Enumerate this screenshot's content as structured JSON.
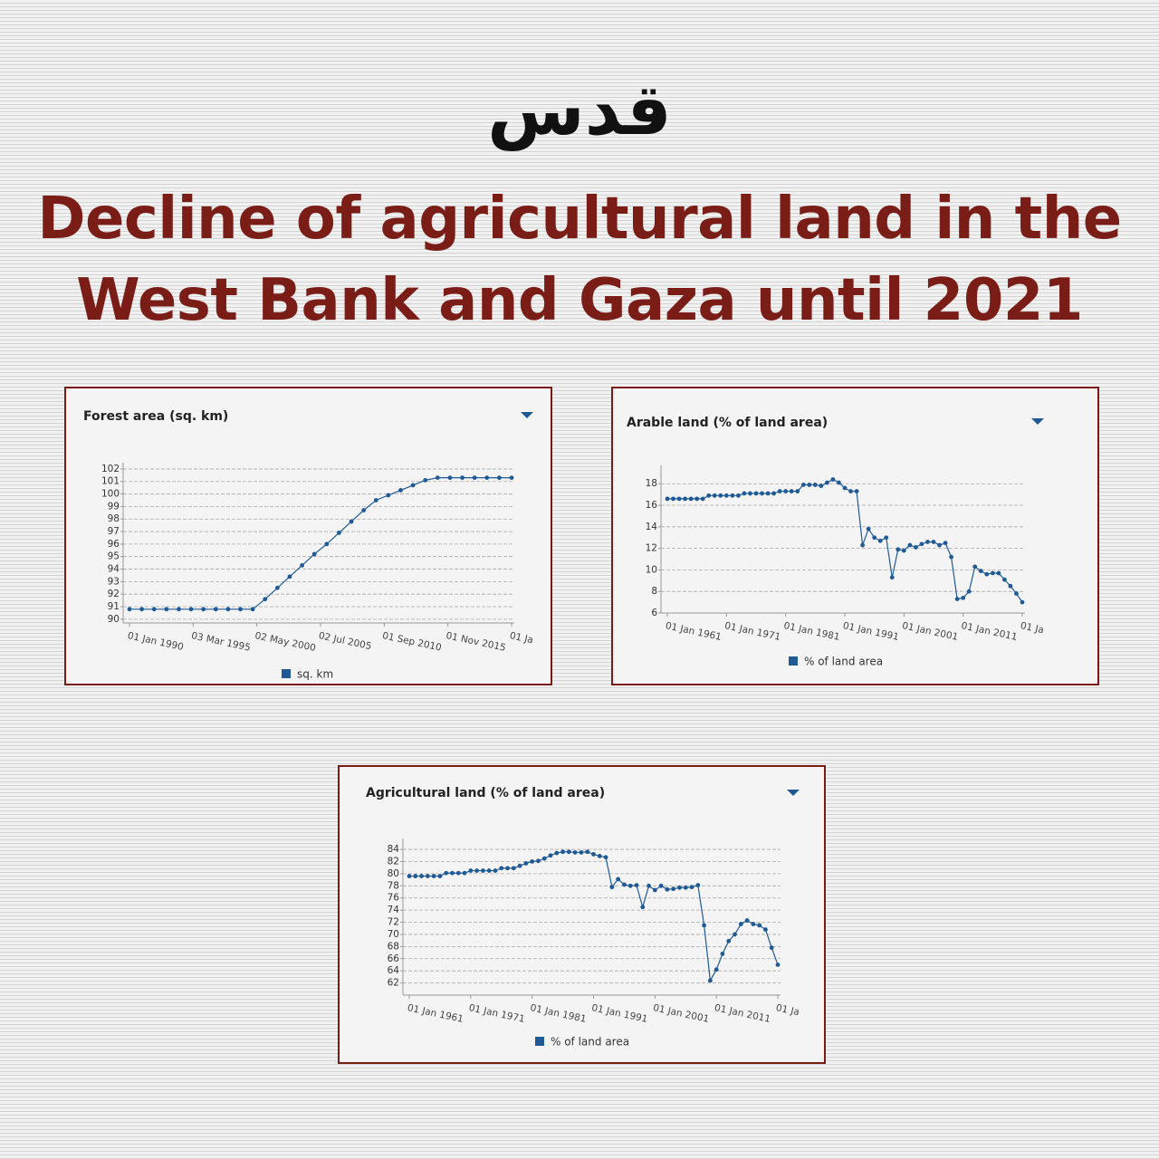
{
  "logo": "قدس",
  "title_lines": [
    "Decline of agricultural land in the",
    "West Bank and Gaza until 2021"
  ],
  "chart_data": [
    {
      "type": "line",
      "title": "Forest area (sq. km)",
      "x": [
        1990,
        1991,
        1992,
        1993,
        1994,
        1995,
        1996,
        1997,
        1998,
        1999,
        2000,
        2001,
        2002,
        2003,
        2004,
        2005,
        2006,
        2007,
        2008,
        2009,
        2010,
        2011,
        2012,
        2013,
        2014,
        2015,
        2016,
        2017,
        2018,
        2019,
        2020,
        2021
      ],
      "series": [
        {
          "name": "sq. km",
          "color": "#1f5a96",
          "values": [
            90.8,
            90.8,
            90.8,
            90.8,
            90.8,
            90.8,
            90.8,
            90.8,
            90.8,
            90.8,
            90.8,
            91.6,
            92.5,
            93.4,
            94.3,
            95.2,
            96.0,
            96.9,
            97.8,
            98.7,
            99.5,
            99.9,
            100.3,
            100.7,
            101.1,
            101.3,
            101.3,
            101.3,
            101.3,
            101.3,
            101.3,
            101.3
          ]
        }
      ],
      "xlim": [
        1990,
        2021
      ],
      "xticks": [
        {
          "value": 1990,
          "label": "01 Jan 1990"
        },
        {
          "value": 1995.17,
          "label": "03 Mar 1995"
        },
        {
          "value": 2000.33,
          "label": "02 May 2000"
        },
        {
          "value": 2005.5,
          "label": "02 Jul 2005"
        },
        {
          "value": 2010.67,
          "label": "01 Sep 2010"
        },
        {
          "value": 2015.83,
          "label": "01 Nov 2015"
        },
        {
          "value": 2021,
          "label": "01 Ja"
        }
      ],
      "ylim": [
        89.7,
        102.5
      ],
      "yticks": [
        90,
        91,
        92,
        93,
        94,
        95,
        96,
        97,
        98,
        99,
        100,
        101,
        102
      ],
      "grid": true
    },
    {
      "type": "line",
      "title": "Arable land (% of land area)",
      "x": [
        1961,
        1962,
        1963,
        1964,
        1965,
        1966,
        1967,
        1968,
        1969,
        1970,
        1971,
        1972,
        1973,
        1974,
        1975,
        1976,
        1977,
        1978,
        1979,
        1980,
        1981,
        1982,
        1983,
        1984,
        1985,
        1986,
        1987,
        1988,
        1989,
        1990,
        1991,
        1992,
        1993,
        1994,
        1995,
        1996,
        1997,
        1998,
        1999,
        2000,
        2001,
        2002,
        2003,
        2004,
        2005,
        2006,
        2007,
        2008,
        2009,
        2010,
        2011,
        2012,
        2013,
        2014,
        2015,
        2016,
        2017,
        2018,
        2019,
        2020,
        2021
      ],
      "series": [
        {
          "name": "% of land area",
          "color": "#1f5a96",
          "values": [
            16.6,
            16.6,
            16.6,
            16.6,
            16.6,
            16.6,
            16.6,
            16.9,
            16.9,
            16.9,
            16.9,
            16.9,
            16.9,
            17.1,
            17.1,
            17.1,
            17.1,
            17.1,
            17.1,
            17.3,
            17.3,
            17.3,
            17.3,
            17.9,
            17.9,
            17.9,
            17.8,
            18.1,
            18.4,
            18.1,
            17.6,
            17.3,
            17.3,
            12.3,
            13.8,
            13.0,
            12.7,
            13.0,
            9.3,
            11.9,
            11.8,
            12.3,
            12.1,
            12.4,
            12.6,
            12.6,
            12.3,
            12.5,
            11.2,
            7.3,
            7.4,
            8.0,
            10.3,
            9.9,
            9.6,
            9.7,
            9.7,
            9.1,
            8.5,
            7.8,
            7.0
          ]
        }
      ],
      "xlim": [
        1961,
        2021
      ],
      "xticks": [
        {
          "value": 1961,
          "label": "01 Jan 1961"
        },
        {
          "value": 1971,
          "label": "01 Jan 1971"
        },
        {
          "value": 1981,
          "label": "01 Jan 1981"
        },
        {
          "value": 1991,
          "label": "01 Jan 1991"
        },
        {
          "value": 2001,
          "label": "01 Jan 2001"
        },
        {
          "value": 2011,
          "label": "01 Jan 2011"
        },
        {
          "value": 2021,
          "label": "01 Ja"
        }
      ],
      "ylim": [
        6,
        19.7
      ],
      "yticks": [
        6,
        8,
        10,
        12,
        14,
        16,
        18
      ],
      "grid": true
    },
    {
      "type": "line",
      "title": "Agricultural land (% of land area)",
      "x": [
        1961,
        1962,
        1963,
        1964,
        1965,
        1966,
        1967,
        1968,
        1969,
        1970,
        1971,
        1972,
        1973,
        1974,
        1975,
        1976,
        1977,
        1978,
        1979,
        1980,
        1981,
        1982,
        1983,
        1984,
        1985,
        1986,
        1987,
        1988,
        1989,
        1990,
        1991,
        1992,
        1993,
        1994,
        1995,
        1996,
        1997,
        1998,
        1999,
        2000,
        2001,
        2002,
        2003,
        2004,
        2005,
        2006,
        2007,
        2008,
        2009,
        2010,
        2011,
        2012,
        2013,
        2014,
        2015,
        2016,
        2017,
        2018,
        2019,
        2020,
        2021
      ],
      "series": [
        {
          "name": "% of land area",
          "color": "#1f5a96",
          "values": [
            79.6,
            79.6,
            79.6,
            79.6,
            79.6,
            79.6,
            80.1,
            80.1,
            80.1,
            80.1,
            80.5,
            80.5,
            80.5,
            80.5,
            80.5,
            80.9,
            80.9,
            80.9,
            81.3,
            81.7,
            82.0,
            82.1,
            82.5,
            83.0,
            83.4,
            83.6,
            83.6,
            83.5,
            83.5,
            83.6,
            83.2,
            82.9,
            82.7,
            77.8,
            79.1,
            78.2,
            78.0,
            78.1,
            74.5,
            78.0,
            77.3,
            78.0,
            77.4,
            77.5,
            77.7,
            77.7,
            77.8,
            78.1,
            71.5,
            62.4,
            64.2,
            66.8,
            68.9,
            70.0,
            71.7,
            72.3,
            71.7,
            71.5,
            70.8,
            67.8,
            65.0
          ]
        }
      ],
      "xlim": [
        1961,
        2021
      ],
      "xticks": [
        {
          "value": 1961,
          "label": "01 Jan 1961"
        },
        {
          "value": 1971,
          "label": "01 Jan 1971"
        },
        {
          "value": 1981,
          "label": "01 Jan 1981"
        },
        {
          "value": 1991,
          "label": "01 Jan 1991"
        },
        {
          "value": 2001,
          "label": "01 Jan 2001"
        },
        {
          "value": 2011,
          "label": "01 Jan 2011"
        },
        {
          "value": 2021,
          "label": "01 Ja"
        }
      ],
      "ylim": [
        60,
        85.8
      ],
      "yticks": [
        62,
        64,
        66,
        68,
        70,
        72,
        74,
        76,
        78,
        80,
        82,
        84
      ],
      "grid": true
    }
  ]
}
